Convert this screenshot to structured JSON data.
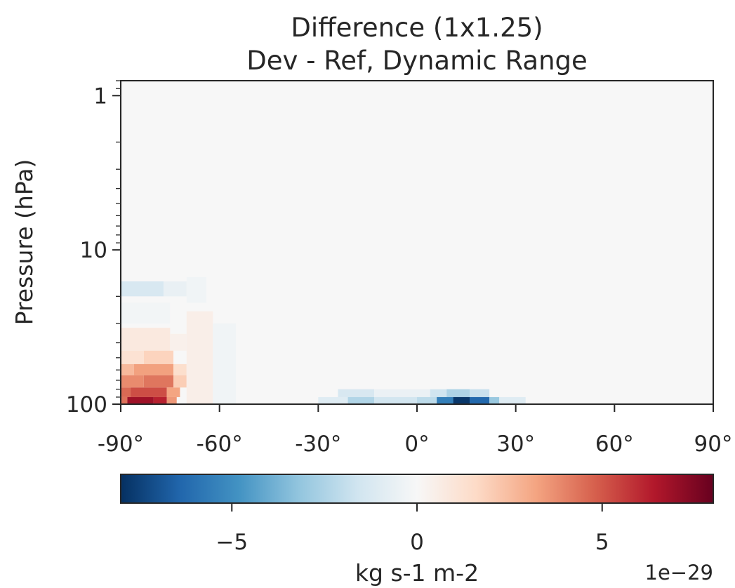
{
  "chart_data": {
    "type": "heatmap",
    "title": "Difference (1x1.25)",
    "subtitle": "Dev - Ref, Dynamic Range",
    "ylabel": "Pressure (hPa)",
    "xlabel": "",
    "x_ticks": [
      "-90°",
      "-60°",
      "-30°",
      "0°",
      "30°",
      "60°",
      "90°"
    ],
    "x_tick_values": [
      -90,
      -60,
      -30,
      0,
      30,
      60,
      90
    ],
    "xlim": [
      -90,
      90
    ],
    "y_scale": "log",
    "y_inverted": true,
    "ylim": [
      100,
      0.8
    ],
    "y_ticks": [
      "1",
      "10",
      "100"
    ],
    "y_tick_values": [
      1,
      10,
      100
    ],
    "colormap": "RdBu_r",
    "colorbar": {
      "label": "kg s-1 m-2",
      "ticks": [
        "−5",
        "0",
        "5"
      ],
      "tick_values": [
        -5,
        0,
        5
      ],
      "offset_text": "1e−29",
      "range": [
        -8,
        8
      ]
    },
    "background_value": 0,
    "cells": [
      {
        "lat": [
          -90,
          -77
        ],
        "p": [
          16,
          20
        ],
        "value": -1.3
      },
      {
        "lat": [
          -77,
          -70
        ],
        "p": [
          16,
          20
        ],
        "value": -0.6
      },
      {
        "lat": [
          -70,
          -64
        ],
        "p": [
          15,
          22
        ],
        "value": -0.3
      },
      {
        "lat": [
          -90,
          -75
        ],
        "p": [
          22,
          30
        ],
        "value": -0.2
      },
      {
        "lat": [
          -90,
          -75
        ],
        "p": [
          32,
          45
        ],
        "value": 0.8
      },
      {
        "lat": [
          -75,
          -70
        ],
        "p": [
          35,
          45
        ],
        "value": 0.4
      },
      {
        "lat": [
          -90,
          -83
        ],
        "p": [
          45,
          55
        ],
        "value": 1.2
      },
      {
        "lat": [
          -83,
          -74
        ],
        "p": [
          45,
          55
        ],
        "value": 1.8
      },
      {
        "lat": [
          -90,
          -86
        ],
        "p": [
          55,
          65
        ],
        "value": 2.6
      },
      {
        "lat": [
          -86,
          -74
        ],
        "p": [
          55,
          65
        ],
        "value": 3.3
      },
      {
        "lat": [
          -74,
          -70
        ],
        "p": [
          55,
          65
        ],
        "value": 1.4
      },
      {
        "lat": [
          -90,
          -83
        ],
        "p": [
          65,
          78
        ],
        "value": 3.8
      },
      {
        "lat": [
          -83,
          -74
        ],
        "p": [
          65,
          78
        ],
        "value": 4.3
      },
      {
        "lat": [
          -74,
          -70
        ],
        "p": [
          65,
          78
        ],
        "value": 2.0
      },
      {
        "lat": [
          -90,
          -87
        ],
        "p": [
          78,
          90
        ],
        "value": 4.6
      },
      {
        "lat": [
          -87,
          -76
        ],
        "p": [
          78,
          90
        ],
        "value": 5.2
      },
      {
        "lat": [
          -76,
          -72
        ],
        "p": [
          78,
          90
        ],
        "value": 3.2
      },
      {
        "lat": [
          -90,
          -88
        ],
        "p": [
          90,
          100
        ],
        "value": 4.4
      },
      {
        "lat": [
          -88,
          -80
        ],
        "p": [
          90,
          100
        ],
        "value": 6.8
      },
      {
        "lat": [
          -80,
          -76
        ],
        "p": [
          90,
          100
        ],
        "value": 6.2
      },
      {
        "lat": [
          -76,
          -73
        ],
        "p": [
          90,
          100
        ],
        "value": 3.5
      },
      {
        "lat": [
          -70,
          -62
        ],
        "p": [
          25,
          100
        ],
        "value": 0.5
      },
      {
        "lat": [
          -62,
          -55
        ],
        "p": [
          30,
          100
        ],
        "value": -0.3
      },
      {
        "lat": [
          -24,
          -13
        ],
        "p": [
          80,
          90
        ],
        "value": -1.3
      },
      {
        "lat": [
          -13,
          4
        ],
        "p": [
          80,
          90
        ],
        "value": -0.5
      },
      {
        "lat": [
          4,
          9
        ],
        "p": [
          80,
          90
        ],
        "value": -1.6
      },
      {
        "lat": [
          9,
          16
        ],
        "p": [
          80,
          90
        ],
        "value": -2.5
      },
      {
        "lat": [
          16,
          22
        ],
        "p": [
          80,
          90
        ],
        "value": -1.8
      },
      {
        "lat": [
          -30,
          -21
        ],
        "p": [
          90,
          100
        ],
        "value": -1.0
      },
      {
        "lat": [
          -21,
          -13
        ],
        "p": [
          90,
          100
        ],
        "value": -2.4
      },
      {
        "lat": [
          -13,
          0
        ],
        "p": [
          90,
          100
        ],
        "value": -1.5
      },
      {
        "lat": [
          0,
          6
        ],
        "p": [
          90,
          100
        ],
        "value": -2.1
      },
      {
        "lat": [
          6,
          11
        ],
        "p": [
          90,
          100
        ],
        "value": -5.5
      },
      {
        "lat": [
          11,
          16
        ],
        "p": [
          90,
          100
        ],
        "value": -7.8
      },
      {
        "lat": [
          16,
          22
        ],
        "p": [
          90,
          100
        ],
        "value": -6.3
      },
      {
        "lat": [
          22,
          25
        ],
        "p": [
          90,
          100
        ],
        "value": -3.0
      },
      {
        "lat": [
          25,
          33
        ],
        "p": [
          90,
          100
        ],
        "value": -1.0
      }
    ]
  }
}
